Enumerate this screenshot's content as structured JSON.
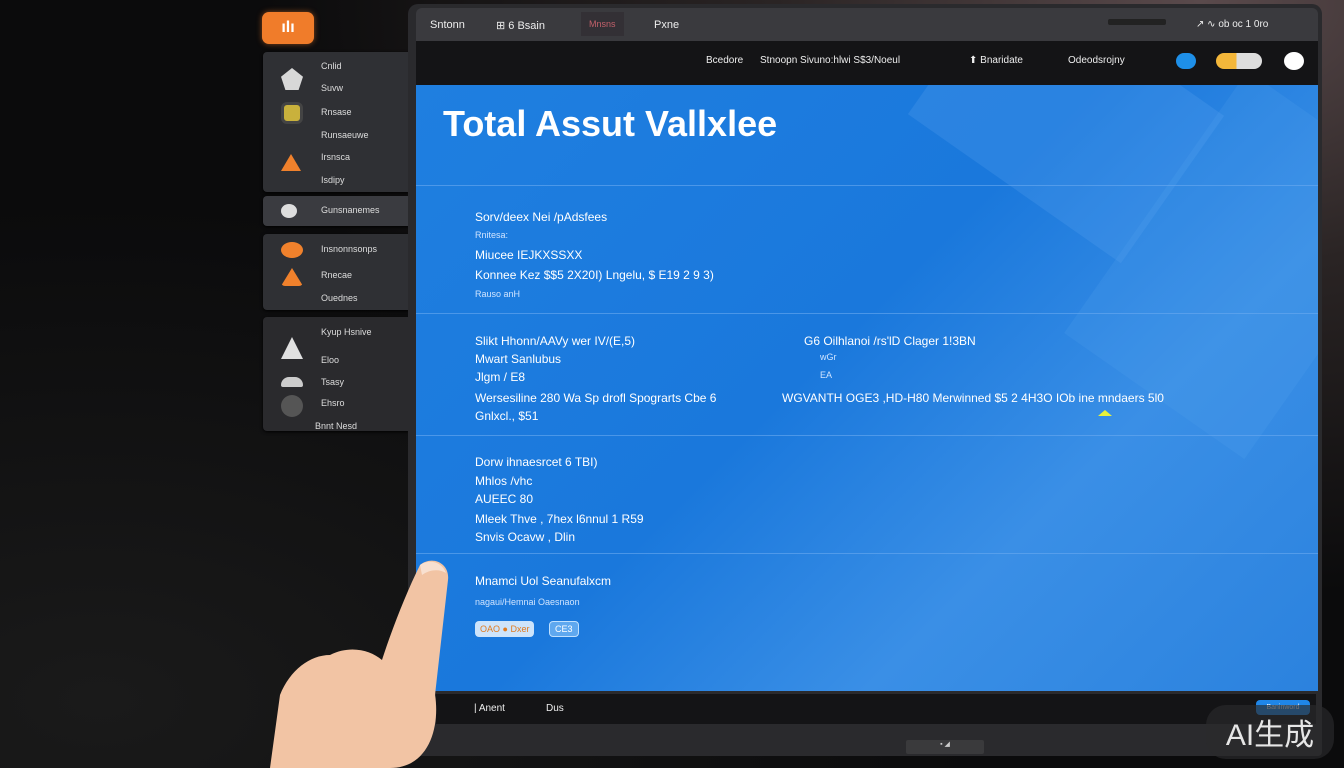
{
  "logo_label": "ılı",
  "sidebar": {
    "group1": [
      "Cnlid",
      "Suvw",
      "Rnsase",
      "Runsaeuwe",
      "Irsnsca",
      "Isdipy"
    ],
    "group2": [
      "Gunsnanemes"
    ],
    "group3": [
      "Insnonnsonps",
      "Rnecae",
      "Ouednes"
    ],
    "group4": [
      "Kyup Hsnive",
      "Eloo",
      "Tsasy",
      "Ehsro",
      "Bnnt Nesd"
    ]
  },
  "topbar": {
    "tabs": [
      "Sntonn",
      "⊞ 6 Bsain",
      "Mnsns",
      "Pxne"
    ],
    "right": "↗  ∿ ob oc 1 0ro"
  },
  "header": {
    "items": [
      "Bcedore",
      "Stnoopn Sivuno:hlwi S$3/Noeul",
      "⬆ Bnaridate",
      "Odeodsrojny"
    ]
  },
  "main": {
    "title": "Total Assut Vallxlee",
    "section1": [
      "Sorv/deex Nei /pAdsfees",
      "Rnitesa:",
      "Miucee  IEJKXSSXX",
      "Konnee Kez $$5 2X20I) Lngelu, $ E19 2 9 3)",
      "Rauso   anH"
    ],
    "section2_left": [
      "Slikt Hhonn/AAVy  wer IV/(E,5)",
      "Mwart Sanlubus",
      "Jlgm / E8",
      "Wersesiline 280 Wa Sp drofl Spograrts Cbe 6",
      "Gnlxcl., $51"
    ],
    "section2_right": [
      "G6 Oilhlanoi /rs'lD Clager 1!3BN",
      "wGr",
      "EA",
      "WGVANTH OGE3 ,HD-H80  Merwinned  $5 2 4H3O IOb ine mndaers 5l0"
    ],
    "section3": [
      "Dorw ihnaesrcet  6 TBI)",
      "Mhlos /vhc",
      "AUEEC  80",
      "Mleek Thve , 7hex l6nnul 1 R59",
      "Snvis Ocavw , Dlin"
    ],
    "section4_title": "Mnamci Uol Seanufalxcm",
    "section4_sub": "nagaui/Hemnai Oaesnaon",
    "chips": [
      "OAO ● Dxer",
      "CE3"
    ]
  },
  "bottombar": {
    "items": [
      "| Anent",
      "Dus"
    ],
    "button": "Baninword"
  },
  "stand_label": "▪ ◢",
  "watermark": "AI生成",
  "colors": {
    "accent": "#f07c2a",
    "content_blue": "#1f7fe0",
    "header": "#141416"
  }
}
